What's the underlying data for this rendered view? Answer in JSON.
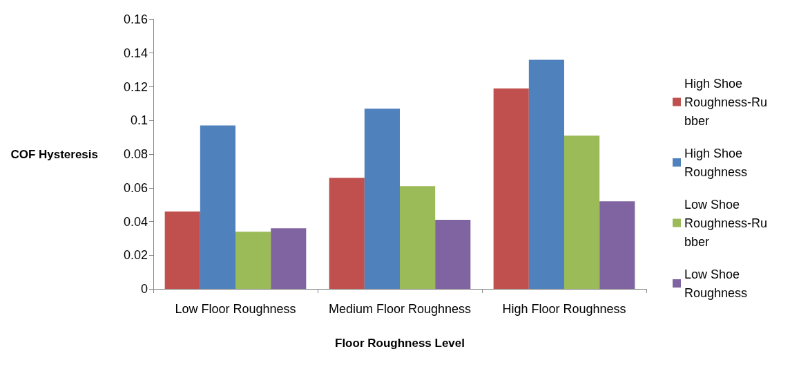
{
  "chart_data": {
    "type": "bar",
    "xlabel": "Floor Roughness Level",
    "ylabel": "COF Hysteresis",
    "categories": [
      "Low Floor Roughness",
      "Medium Floor Roughness",
      "High Floor Roughness"
    ],
    "series": [
      {
        "name": "High Shoe Roughness-Rubber",
        "color": "#c0504d",
        "values": [
          0.046,
          0.066,
          0.119
        ]
      },
      {
        "name": "High Shoe Roughness",
        "color": "#4f81bd",
        "values": [
          0.097,
          0.107,
          0.136
        ]
      },
      {
        "name": "Low Shoe Roughness-Rubber",
        "color": "#9bbb59",
        "values": [
          0.034,
          0.061,
          0.091
        ]
      },
      {
        "name": "Low Shoe Roughness",
        "color": "#8064a2",
        "values": [
          0.036,
          0.041,
          0.052
        ]
      }
    ],
    "ylim": [
      0,
      0.16
    ],
    "yticks": [
      0,
      0.02,
      0.04,
      0.06,
      0.08,
      0.1,
      0.12,
      0.14,
      0.16
    ],
    "grid": false,
    "legend": "right"
  }
}
